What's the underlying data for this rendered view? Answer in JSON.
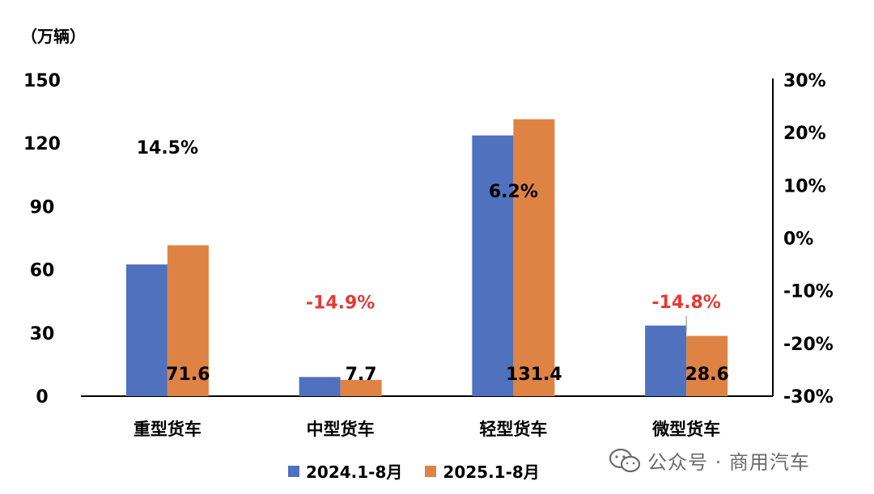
{
  "chart_data": {
    "type": "bar",
    "unit_label": "（万辆）",
    "categories": [
      "重型货车",
      "中型货车",
      "轻型货车",
      "微型货车"
    ],
    "series": [
      {
        "name": "2024.1-8月",
        "color": "#4f71be",
        "values": [
          62.5,
          9.1,
          123.7,
          33.5
        ]
      },
      {
        "name": "2025.1-8月",
        "color": "#de8344",
        "values": [
          71.6,
          7.7,
          131.4,
          28.6
        ]
      }
    ],
    "value_labels": [
      "71.6",
      "7.7",
      "131.4",
      "28.6"
    ],
    "growth_labels": [
      "14.5%",
      "-14.9%",
      "6.2%",
      "-14.8%"
    ],
    "growth_colors": [
      "#000000",
      "#e23b36",
      "#000000",
      "#e23b36"
    ],
    "growth_values": [
      14.5,
      -14.9,
      6.2,
      -14.8
    ],
    "left_axis": {
      "ticks": [
        "0",
        "30",
        "60",
        "90",
        "120",
        "150"
      ],
      "range": [
        0,
        150
      ]
    },
    "right_axis": {
      "ticks": [
        "-30%",
        "-20%",
        "-10%",
        "0%",
        "10%",
        "20%",
        "30%"
      ],
      "range": [
        -30,
        30
      ]
    }
  },
  "legend": {
    "item1": "2024.1-8月",
    "item2": "2025.1-8月",
    "color1": "#4f71be",
    "color2": "#de8344"
  },
  "watermark": {
    "text": "公众号 · 商用汽车",
    "icon": "wechat-icon"
  }
}
